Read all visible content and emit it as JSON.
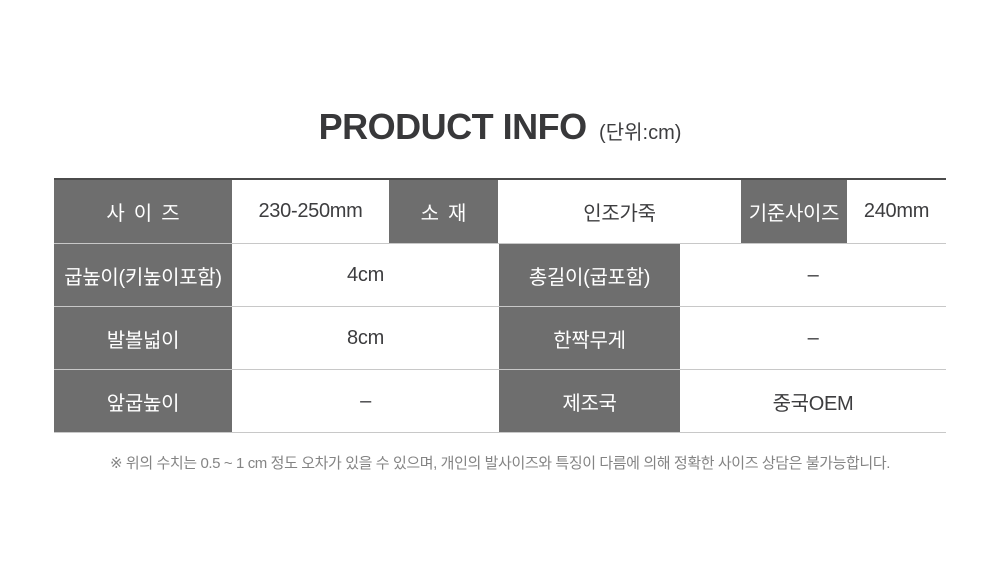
{
  "page": {
    "title": "PRODUCT INFO",
    "title_unit": "(단위:cm)"
  },
  "table": {
    "rows": [
      {
        "cells": [
          {
            "text": "사이즈"
          },
          {
            "text": "230-250mm"
          },
          {
            "text": "소재"
          },
          {
            "text": "인조가죽"
          },
          {
            "text": "기준사이즈"
          },
          {
            "text": "240mm"
          }
        ]
      },
      {
        "cells": [
          {
            "text": "굽높이(키높이포함)"
          },
          {
            "text": "4cm"
          },
          {
            "text": "총길이(굽포함)"
          },
          {
            "text": "–"
          }
        ]
      },
      {
        "cells": [
          {
            "text": "발볼넓이"
          },
          {
            "text": "8cm"
          },
          {
            "text": "한짝무게"
          },
          {
            "text": "–"
          }
        ]
      },
      {
        "cells": [
          {
            "text": "앞굽높이"
          },
          {
            "text": "–"
          },
          {
            "text": "제조국"
          },
          {
            "text": "중국OEM"
          }
        ]
      }
    ]
  },
  "note": "※ 위의 수치는 0.5 ~ 1 cm 정도 오차가 있을 수 있으며, 개인의 발사이즈와 특징이 다름에 의해 정확한 사이즈 상담은 불가능합니다.",
  "colors": {
    "header_bg": "#6e6e6e",
    "header_text": "#ffffff",
    "value_text": "#3d3d3f",
    "title_text": "#38383a",
    "note_text": "#848484",
    "row_border": "#c8c8c8",
    "table_top_border": "#4b4b4b"
  }
}
